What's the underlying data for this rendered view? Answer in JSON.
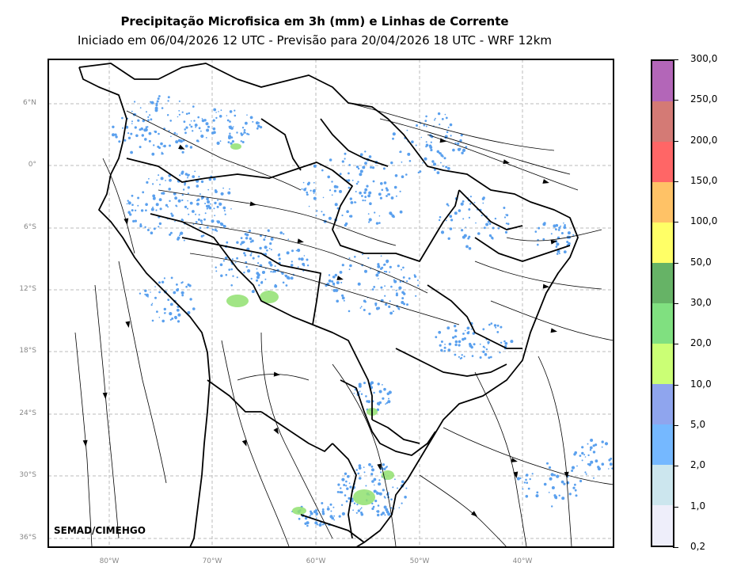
{
  "title": "Precipitação Microfisica em 3h (mm) e Linhas de Corrente",
  "subtitle": "Iniciado em 06/04/2026 12 UTC - Previsão para 20/04/2026 18 UTC - WRF 12km",
  "credit": "SEMAD/CIMEHGO",
  "lat_labels": [
    "6°N",
    "0°",
    "6°S",
    "12°S",
    "18°S",
    "24°S",
    "30°S",
    "36°S"
  ],
  "lon_labels": [
    "80°W",
    "70°W",
    "60°W",
    "50°W",
    "40°W"
  ],
  "colorbar": {
    "labels": [
      "0,2",
      "1,0",
      "2,0",
      "5,0",
      "10,0",
      "20,0",
      "30,0",
      "50,0",
      "100,0",
      "150,0",
      "200,0",
      "250,0",
      "300,0"
    ],
    "colors": [
      "#eeeefa",
      "#cce6ee",
      "#75b8ff",
      "#8fa5ee",
      "#cbff75",
      "#80e080",
      "#66b366",
      "#ffff66",
      "#ffc266",
      "#ff6666",
      "#d47a75",
      "#b366b8"
    ]
  },
  "map_colors": {
    "light_precip": "#5aa0ee",
    "moderate_precip": "#90e070",
    "border": "#000000",
    "grid": "#bbbbbb"
  }
}
